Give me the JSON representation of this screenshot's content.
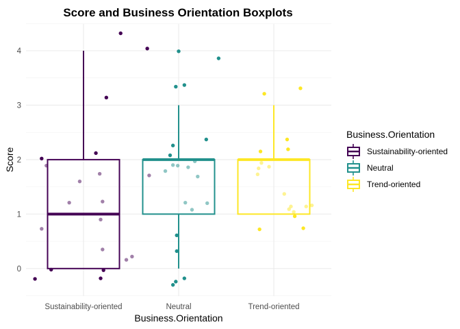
{
  "chart_data": {
    "type": "boxplot",
    "title": "Score and Business Orientation Boxplots",
    "xlabel": "Business.Orientation",
    "ylabel": "Score",
    "ylim": [
      -0.5,
      4.5
    ],
    "yticks": [
      0,
      1,
      2,
      3,
      4
    ],
    "grid": true,
    "legend": {
      "title": "Business.Orientation",
      "placement": "right",
      "entries": [
        "Sustainability-oriented",
        "Neutral",
        "Trend-oriented"
      ]
    },
    "categories": [
      "Sustainability-oriented",
      "Neutral",
      "Trend-oriented"
    ],
    "colors": [
      "#440154",
      "#21908C",
      "#FDE725"
    ],
    "boxes": [
      {
        "name": "Sustainability-oriented",
        "whisker_low": 0,
        "q1": 0,
        "median": 1,
        "q3": 2,
        "whisker_high": 4
      },
      {
        "name": "Neutral",
        "whisker_low": 0,
        "q1": 1,
        "median": 2,
        "q3": 2,
        "whisker_high": 3
      },
      {
        "name": "Trend-oriented",
        "whisker_low": 1,
        "q1": 1,
        "median": 2,
        "q3": 2,
        "whisker_high": 3
      }
    ],
    "points": [
      {
        "series": 0,
        "x": 0.49,
        "y": -0.19,
        "opaque": true
      },
      {
        "series": 0,
        "x": 0.66,
        "y": -0.02,
        "opaque": true
      },
      {
        "series": 0,
        "x": 1.18,
        "y": -0.18,
        "opaque": true
      },
      {
        "series": 0,
        "x": 1.21,
        "y": -0.03,
        "opaque": true
      },
      {
        "series": 0,
        "x": 0.56,
        "y": 2.02,
        "opaque": true
      },
      {
        "series": 0,
        "x": 1.13,
        "y": 2.12,
        "opaque": true
      },
      {
        "series": 0,
        "x": 1.24,
        "y": 3.14,
        "opaque": true
      },
      {
        "series": 0,
        "x": 1.39,
        "y": 4.32,
        "opaque": true
      },
      {
        "series": 0,
        "x": 1.67,
        "y": 4.04,
        "opaque": true
      },
      {
        "series": 0,
        "x": 0.61,
        "y": 1.89,
        "opaque": false
      },
      {
        "series": 0,
        "x": 0.96,
        "y": 1.6,
        "opaque": false
      },
      {
        "series": 0,
        "x": 1.17,
        "y": 1.74,
        "opaque": false
      },
      {
        "series": 0,
        "x": 1.69,
        "y": 1.71,
        "opaque": false
      },
      {
        "series": 0,
        "x": 0.85,
        "y": 1.21,
        "opaque": false
      },
      {
        "series": 0,
        "x": 1.2,
        "y": 1.23,
        "opaque": false
      },
      {
        "series": 0,
        "x": 1.18,
        "y": 0.9,
        "opaque": false
      },
      {
        "series": 0,
        "x": 0.56,
        "y": 0.73,
        "opaque": false
      },
      {
        "series": 0,
        "x": 1.2,
        "y": 0.35,
        "opaque": false
      },
      {
        "series": 0,
        "x": 1.51,
        "y": 0.22,
        "opaque": false
      },
      {
        "series": 0,
        "x": 1.45,
        "y": 0.16,
        "opaque": false
      },
      {
        "series": 1,
        "x": 2.0,
        "y": 3.99,
        "opaque": true
      },
      {
        "series": 1,
        "x": 2.42,
        "y": 3.86,
        "opaque": true
      },
      {
        "series": 1,
        "x": 1.97,
        "y": 3.34,
        "opaque": true
      },
      {
        "series": 1,
        "x": 2.06,
        "y": 3.37,
        "opaque": true
      },
      {
        "series": 1,
        "x": 2.29,
        "y": 2.37,
        "opaque": true
      },
      {
        "series": 1,
        "x": 1.94,
        "y": 2.26,
        "opaque": true
      },
      {
        "series": 1,
        "x": 1.91,
        "y": 2.08,
        "opaque": true
      },
      {
        "series": 1,
        "x": 1.98,
        "y": 0.61,
        "opaque": true
      },
      {
        "series": 1,
        "x": 1.98,
        "y": 0.32,
        "opaque": true
      },
      {
        "series": 1,
        "x": 1.97,
        "y": -0.24,
        "opaque": true
      },
      {
        "series": 1,
        "x": 1.94,
        "y": -0.3,
        "opaque": true
      },
      {
        "series": 1,
        "x": 2.06,
        "y": -0.18,
        "opaque": true
      },
      {
        "series": 1,
        "x": 1.94,
        "y": 1.9,
        "opaque": false
      },
      {
        "series": 1,
        "x": 1.99,
        "y": 1.89,
        "opaque": false
      },
      {
        "series": 1,
        "x": 2.1,
        "y": 1.86,
        "opaque": false
      },
      {
        "series": 1,
        "x": 2.17,
        "y": 1.97,
        "opaque": false
      },
      {
        "series": 1,
        "x": 1.86,
        "y": 1.79,
        "opaque": false
      },
      {
        "series": 1,
        "x": 2.2,
        "y": 1.69,
        "opaque": false
      },
      {
        "series": 1,
        "x": 2.07,
        "y": 1.21,
        "opaque": false
      },
      {
        "series": 1,
        "x": 2.3,
        "y": 1.2,
        "opaque": false
      },
      {
        "series": 1,
        "x": 2.14,
        "y": 1.08,
        "opaque": false
      },
      {
        "series": 2,
        "x": 2.9,
        "y": 3.21,
        "opaque": true
      },
      {
        "series": 2,
        "x": 3.28,
        "y": 3.31,
        "opaque": true
      },
      {
        "series": 2,
        "x": 3.14,
        "y": 2.37,
        "opaque": true
      },
      {
        "series": 2,
        "x": 3.15,
        "y": 2.19,
        "opaque": true
      },
      {
        "series": 2,
        "x": 2.86,
        "y": 2.15,
        "opaque": true
      },
      {
        "series": 2,
        "x": 2.85,
        "y": 0.72,
        "opaque": true
      },
      {
        "series": 2,
        "x": 3.22,
        "y": 0.96,
        "opaque": true
      },
      {
        "series": 2,
        "x": 3.31,
        "y": 0.74,
        "opaque": true
      },
      {
        "series": 2,
        "x": 2.87,
        "y": 1.94,
        "opaque": false
      },
      {
        "series": 2,
        "x": 2.95,
        "y": 1.87,
        "opaque": false
      },
      {
        "series": 2,
        "x": 2.84,
        "y": 1.84,
        "opaque": false
      },
      {
        "series": 2,
        "x": 2.83,
        "y": 1.73,
        "opaque": false
      },
      {
        "series": 2,
        "x": 3.11,
        "y": 1.37,
        "opaque": false
      },
      {
        "series": 2,
        "x": 3.18,
        "y": 1.14,
        "opaque": false
      },
      {
        "series": 2,
        "x": 3.16,
        "y": 1.09,
        "opaque": false
      },
      {
        "series": 2,
        "x": 3.21,
        "y": 1.04,
        "opaque": false
      },
      {
        "series": 2,
        "x": 3.34,
        "y": 1.14,
        "opaque": false
      },
      {
        "series": 2,
        "x": 3.4,
        "y": 1.16,
        "opaque": false
      }
    ]
  }
}
